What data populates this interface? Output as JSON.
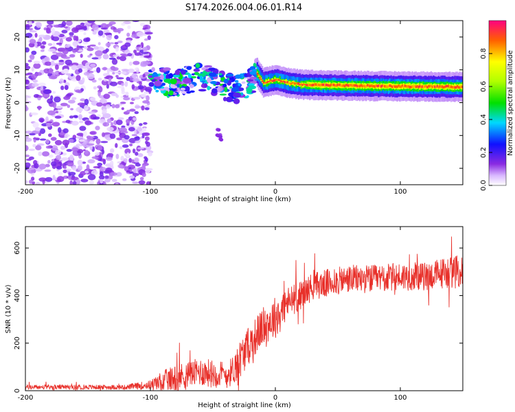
{
  "chart_data": [
    {
      "type": "heatmap",
      "title": "S174.2026.004.06.01.R14",
      "xlabel": "Height of straight line (km)",
      "ylabel": "Frequency (Hz)",
      "xlim": [
        -200,
        150
      ],
      "ylim": [
        -25,
        25
      ],
      "x_ticks": [
        -200,
        -100,
        0,
        100
      ],
      "x_tick_labels": [
        "-200",
        "-100",
        "0",
        "100"
      ],
      "y_ticks": [
        -20,
        -10,
        0,
        10,
        20
      ],
      "y_tick_labels": [
        "-20",
        "-10",
        "0",
        "10",
        "20"
      ],
      "colorbar": {
        "label": "Normalized spectral amplitude",
        "range": [
          0,
          1
        ],
        "ticks": [
          0.0,
          0.2,
          0.4,
          0.6,
          0.8
        ],
        "tick_labels": [
          "0.0",
          "0.2",
          "0.4",
          "0.6",
          "0.8"
        ]
      },
      "features": [
        {
          "name": "noise-region",
          "x_range": [
            -200,
            -100
          ],
          "freq_range": [
            -25,
            25
          ],
          "amplitude": 0.15
        },
        {
          "name": "blobs",
          "x_range": [
            -100,
            -15
          ],
          "freq_trend": [
            [
              -100,
              7
            ],
            [
              -80,
              6
            ],
            [
              -60,
              8
            ],
            [
              -40,
              5
            ],
            [
              -30,
              4
            ],
            [
              -20,
              6
            ],
            [
              -15,
              9
            ]
          ],
          "amplitude": 0.45
        },
        {
          "name": "secondary-blob",
          "x": -45,
          "freq_range": [
            -12,
            -8
          ],
          "amplitude": 0.1
        },
        {
          "name": "ridge",
          "x_range": [
            -15,
            150
          ],
          "freq_trend": [
            [
              -15,
              9
            ],
            [
              -10,
              6
            ],
            [
              0,
              7
            ],
            [
              10,
              6
            ],
            [
              20,
              5.5
            ],
            [
              40,
              5.3
            ],
            [
              90,
              5
            ],
            [
              150,
              4.8
            ]
          ],
          "peak_amplitude": 0.95
        }
      ]
    },
    {
      "type": "line",
      "xlabel": "Height of straight line (km)",
      "ylabel": "SNR (10 * v/v)",
      "xlim": [
        -200,
        150
      ],
      "ylim": [
        0,
        690
      ],
      "x_ticks": [
        -200,
        -100,
        0,
        100
      ],
      "x_tick_labels": [
        "-200",
        "-100",
        "0",
        "100"
      ],
      "y_ticks": [
        0,
        200,
        400,
        600
      ],
      "y_tick_labels": [
        "0",
        "200",
        "400",
        "600"
      ],
      "color": "#e8302a",
      "series": [
        {
          "name": "SNR",
          "trend_x": [
            -200,
            -160,
            -120,
            -100,
            -90,
            -80,
            -60,
            -40,
            -35,
            -30,
            -20,
            -10,
            0,
            10,
            20,
            30,
            40,
            60,
            80,
            100,
            120,
            140,
            150
          ],
          "trend_y": [
            15,
            15,
            15,
            25,
            40,
            55,
            80,
            65,
            80,
            120,
            200,
            270,
            310,
            370,
            400,
            440,
            450,
            470,
            470,
            480,
            480,
            500,
            500
          ],
          "noise_amplitude": [
            10,
            10,
            10,
            20,
            45,
            55,
            60,
            60,
            60,
            80,
            80,
            80,
            90,
            70,
            60,
            60,
            60,
            60,
            60,
            60,
            60,
            70,
            70
          ]
        }
      ]
    }
  ]
}
